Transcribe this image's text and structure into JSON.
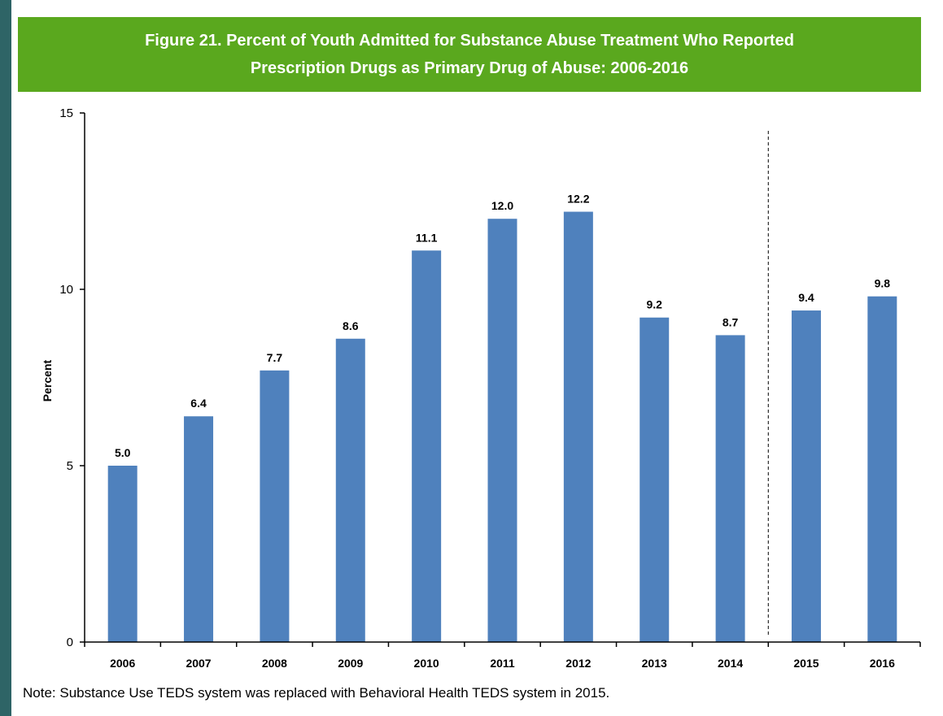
{
  "title_line1": "Figure 21. Percent of Youth Admitted for Substance Abuse Treatment Who Reported",
  "title_line2": "Prescription Drugs as Primary Drug of Abuse: 2006-2016",
  "note": "Note: Substance Use TEDS system was replaced with Behavioral Health TEDS system in 2015.",
  "colors": {
    "background": "#2e6466",
    "title_bar": "#5aa81e",
    "bar": "#4f81bd"
  },
  "chart_data": {
    "type": "bar",
    "title": "Figure 21. Percent of Youth Admitted for Substance Abuse Treatment Who Reported Prescription Drugs as Primary Drug of Abuse: 2006-2016",
    "xlabel": "",
    "ylabel": "Percent",
    "categories": [
      "2006",
      "2007",
      "2008",
      "2009",
      "2010",
      "2011",
      "2012",
      "2013",
      "2014",
      "2015",
      "2016"
    ],
    "values": [
      5.0,
      6.4,
      7.7,
      8.6,
      11.1,
      12.0,
      12.2,
      9.2,
      8.7,
      9.4,
      9.8
    ],
    "data_labels": [
      "5.0",
      "6.4",
      "7.7",
      "8.6",
      "11.1",
      "12.0",
      "12.2",
      "9.2",
      "8.7",
      "9.4",
      "9.8"
    ],
    "ylim": [
      0,
      15
    ],
    "yticks": [
      0,
      5,
      10,
      15
    ],
    "grid": false,
    "legend": "none",
    "annotations": [
      {
        "type": "dashed-vertical-line",
        "between": [
          "2014",
          "2015"
        ]
      }
    ]
  }
}
